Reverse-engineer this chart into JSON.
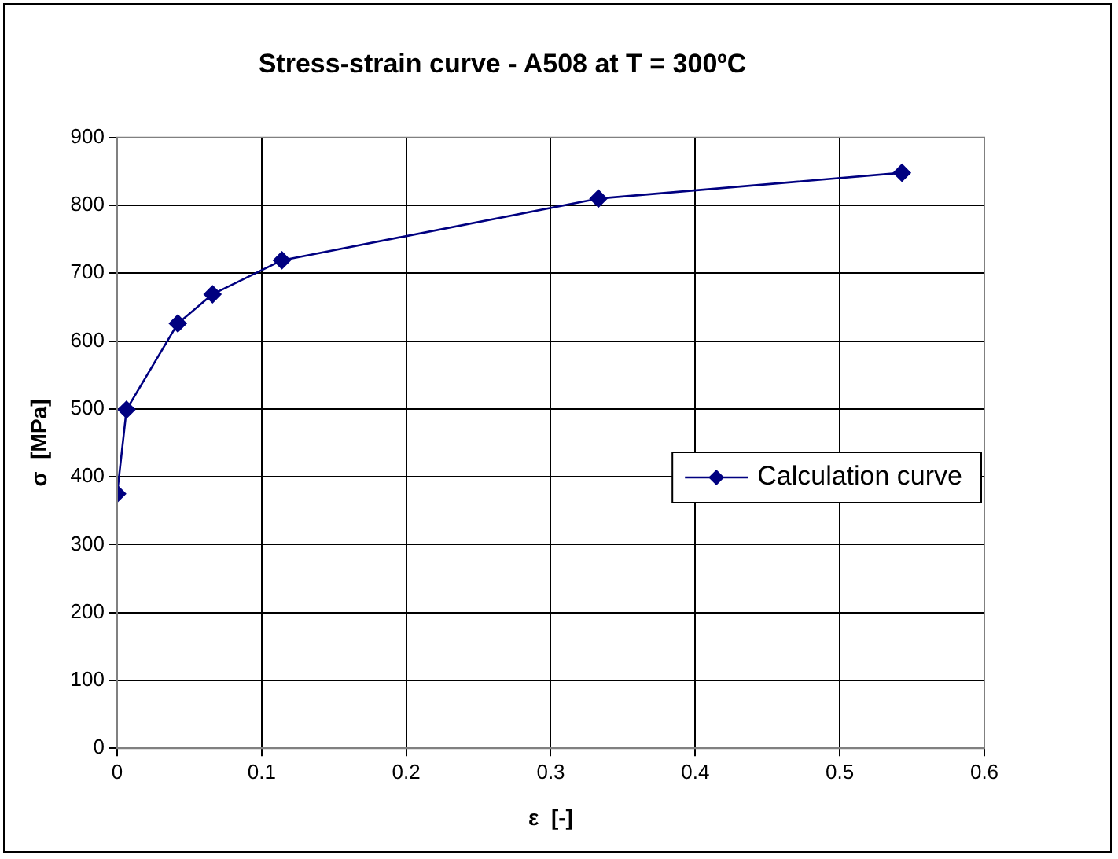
{
  "chart_data": {
    "type": "line",
    "title": "Stress-strain curve - A508 at T = 300ºC",
    "xlabel": "ε  [-]",
    "ylabel": "σ  [MPa]",
    "x": [
      0,
      0.0065,
      0.042,
      0.066,
      0.114,
      0.333,
      0.543
    ],
    "series": [
      {
        "name": "Calculation curve",
        "color": "#000080",
        "values": [
          375,
          499,
          626,
          669,
          719,
          810,
          848
        ]
      }
    ],
    "xlim": [
      0,
      0.6
    ],
    "xticks": [
      0,
      0.1,
      0.2,
      0.3,
      0.4,
      0.5,
      0.6
    ],
    "ylim": [
      0,
      900
    ],
    "yticks": [
      0,
      100,
      200,
      300,
      400,
      500,
      600,
      700,
      800,
      900
    ],
    "grid": true,
    "legend": "right",
    "marker": "diamond",
    "line_style": "solid"
  }
}
